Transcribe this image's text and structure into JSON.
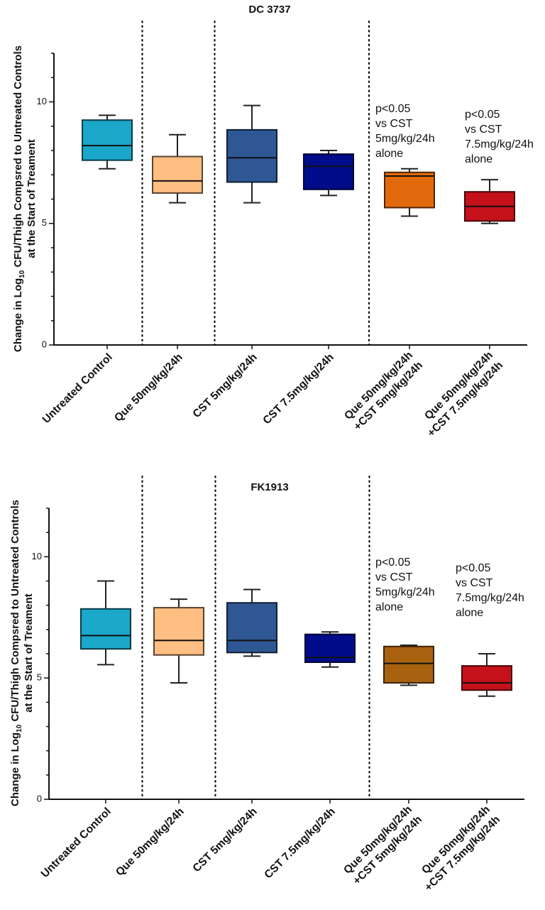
{
  "chart_data": [
    {
      "type": "box",
      "title": "DC 3737",
      "ylabel_line1_prefix": "Change in Log",
      "ylabel_sub": "10",
      "ylabel_line1_suffix": " CFU/Thigh Compsred to Untreated Controls",
      "ylabel_line2": "at the Start of Treament",
      "ylim": [
        0,
        12
      ],
      "yticks": [
        0,
        5,
        10
      ],
      "ytick_labels": [
        "0",
        "5",
        "10"
      ],
      "separators_after_group": [
        1,
        2,
        4
      ],
      "groups": [
        {
          "label_lines": [
            "Untreated Control"
          ],
          "color": "#1aa7c9",
          "min": 7.25,
          "q1": 7.6,
          "median": 8.2,
          "q3": 9.25,
          "max": 9.45
        },
        {
          "label_lines": [
            "Que 50mg/kg/24h"
          ],
          "color": "#ffbe82",
          "min": 5.85,
          "q1": 6.25,
          "median": 6.75,
          "q3": 7.75,
          "max": 8.65
        },
        {
          "label_lines": [
            "CST 5mg/kg/24h"
          ],
          "color": "#2e5793",
          "min": 5.85,
          "q1": 6.7,
          "median": 7.7,
          "q3": 8.85,
          "max": 9.85
        },
        {
          "label_lines": [
            "CST 7.5mg/kg/24h"
          ],
          "color": "#000c8a",
          "min": 6.15,
          "q1": 6.4,
          "median": 7.35,
          "q3": 7.85,
          "max": 8.0
        },
        {
          "label_lines": [
            "Que 50mg/kg/24h",
            "+CST 5mg/kg/24h"
          ],
          "color": "#e36a0c",
          "min": 5.3,
          "q1": 5.65,
          "median": 6.95,
          "q3": 7.1,
          "max": 7.25
        },
        {
          "label_lines": [
            "Que 50mg/kg/24h",
            "+CST 7.5mg/kg/24h"
          ],
          "color": "#c4111a",
          "min": 5.0,
          "q1": 5.1,
          "median": 5.7,
          "q3": 6.3,
          "max": 6.8
        }
      ],
      "annotations": [
        {
          "group": 4,
          "lines": [
            "p<0.05",
            "vs  CST",
            "5mg/kg/24h",
            "alone"
          ]
        },
        {
          "group": 5,
          "lines": [
            "p<0.05",
            "vs  CST",
            "7.5mg/kg/24h",
            "alone"
          ]
        }
      ]
    },
    {
      "type": "box",
      "title": "FK1913",
      "ylabel_line1_prefix": "Change in Log",
      "ylabel_sub": "10",
      "ylabel_line1_suffix": " CFU/Thigh Compsred to Untreated Controls",
      "ylabel_line2": "at the Start of Treament",
      "ylim": [
        0,
        12
      ],
      "yticks": [
        0,
        5,
        10
      ],
      "ytick_labels": [
        "0",
        "5",
        "10"
      ],
      "separators_after_group": [
        1,
        2,
        4
      ],
      "groups": [
        {
          "label_lines": [
            "Untreated Control"
          ],
          "color": "#1aa7c9",
          "min": 5.55,
          "q1": 6.2,
          "median": 6.75,
          "q3": 7.85,
          "max": 9.0
        },
        {
          "label_lines": [
            "Que 50mg/kg/24h"
          ],
          "color": "#ffbe82",
          "min": 4.8,
          "q1": 5.95,
          "median": 6.55,
          "q3": 7.9,
          "max": 8.25
        },
        {
          "label_lines": [
            "CST 5mg/kg/24h"
          ],
          "color": "#2e5793",
          "min": 5.9,
          "q1": 6.05,
          "median": 6.55,
          "q3": 8.1,
          "max": 8.65
        },
        {
          "label_lines": [
            "CST 7.5mg/kg/24h"
          ],
          "color": "#000c8a",
          "min": 5.45,
          "q1": 5.65,
          "median": 5.85,
          "q3": 6.8,
          "max": 6.9
        },
        {
          "label_lines": [
            "Que 50mg/kg/24h",
            "+CST 5mg/kg/24h"
          ],
          "color": "#a8620f",
          "min": 4.7,
          "q1": 4.8,
          "median": 5.6,
          "q3": 6.3,
          "max": 6.35
        },
        {
          "label_lines": [
            "Que 50mg/kg/24h",
            "+CST 7.5mg/kg/24h"
          ],
          "color": "#c4111a",
          "min": 4.25,
          "q1": 4.5,
          "median": 4.8,
          "q3": 5.5,
          "max": 6.0
        }
      ],
      "annotations": [
        {
          "group": 4,
          "lines": [
            "p<0.05",
            "vs  CST",
            "5mg/kg/24h",
            "alone"
          ]
        },
        {
          "group": 5,
          "lines": [
            "p<0.05",
            "vs  CST",
            "7.5mg/kg/24h",
            "alone"
          ]
        }
      ]
    }
  ]
}
